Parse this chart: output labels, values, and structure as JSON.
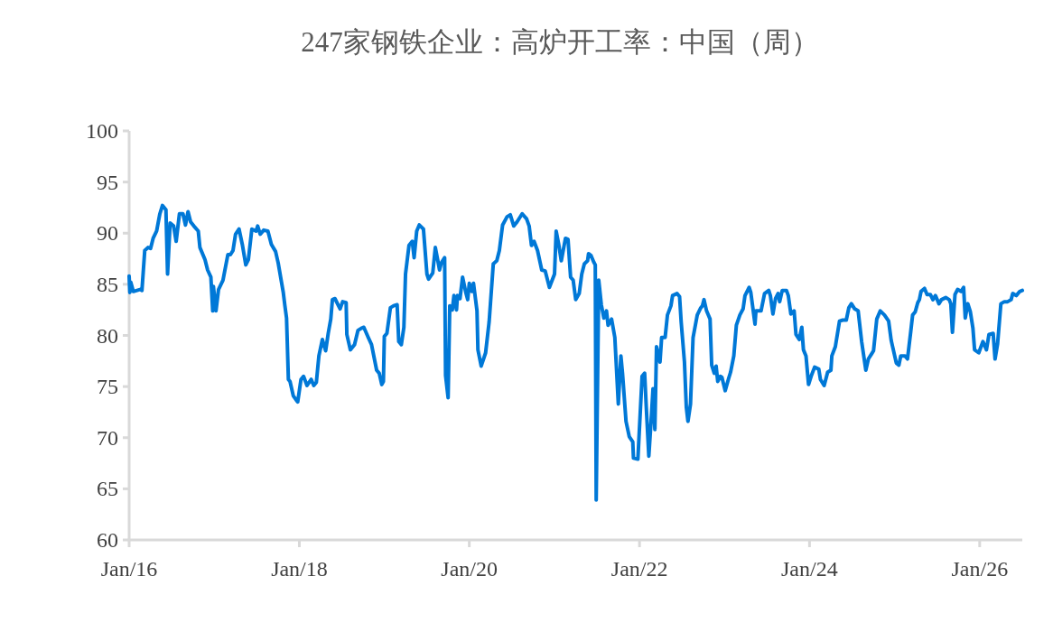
{
  "chart_data": {
    "type": "line",
    "title": "247家钢铁企业：高炉开工率：中国（周）",
    "x": [
      "2016-01-01",
      "2016-01-04",
      "2016-01-08",
      "2016-01-19",
      "2016-02-17",
      "2016-02-25",
      "2016-03-08",
      "2016-03-22",
      "2016-04-02",
      "2016-04-13",
      "2016-04-28",
      "2016-05-12",
      "2016-05-23",
      "2016-06-07",
      "2016-06-14",
      "2016-06-25",
      "2016-07-10",
      "2016-07-21",
      "2016-08-04",
      "2016-08-19",
      "2016-08-30",
      "2016-09-10",
      "2016-09-21",
      "2016-10-05",
      "2016-10-24",
      "2016-10-31",
      "2016-11-22",
      "2016-12-03",
      "2016-12-17",
      "2016-12-25",
      "2016-12-28",
      "2017-01-08",
      "2017-01-19",
      "2017-02-07",
      "2017-02-17",
      "2017-02-28",
      "2017-03-11",
      "2017-03-22",
      "2017-04-02",
      "2017-04-17",
      "2017-05-01",
      "2017-05-16",
      "2017-05-27",
      "2017-06-11",
      "2017-06-29",
      "2017-07-06",
      "2017-07-17",
      "2017-08-01",
      "2017-08-19",
      "2017-09-03",
      "2017-09-21",
      "2017-10-02",
      "2017-10-24",
      "2017-10-31",
      "2017-11-07",
      "2017-11-15",
      "2017-11-22",
      "2017-12-06",
      "2017-12-21",
      "2017-12-25",
      "2018-01-08",
      "2018-01-19",
      "2018-02-03",
      "2018-02-21",
      "2018-03-04",
      "2018-03-15",
      "2018-03-26",
      "2018-04-10",
      "2018-04-24",
      "2018-05-05",
      "2018-05-16",
      "2018-05-23",
      "2018-06-03",
      "2018-06-25",
      "2018-07-06",
      "2018-07-21",
      "2018-07-24",
      "2018-08-08",
      "2018-08-26",
      "2018-09-10",
      "2018-09-24",
      "2018-10-05",
      "2018-10-24",
      "2018-11-07",
      "2018-11-29",
      "2018-12-10",
      "2018-12-21",
      "2018-12-28",
      "2019-01-01",
      "2019-01-12",
      "2019-01-27",
      "2019-02-10",
      "2019-02-25",
      "2019-03-04",
      "2019-03-15",
      "2019-03-26",
      "2019-04-02",
      "2019-04-17",
      "2019-05-01",
      "2019-05-09",
      "2019-05-20",
      "2019-05-31",
      "2019-06-18",
      "2019-07-03",
      "2019-07-10",
      "2019-07-28",
      "2019-08-08",
      "2019-08-19",
      "2019-08-26",
      "2019-09-03",
      "2019-09-17",
      "2019-09-21",
      "2019-10-02",
      "2019-10-09",
      "2019-10-20",
      "2019-10-27",
      "2019-11-07",
      "2019-11-11",
      "2019-11-22",
      "2019-12-03",
      "2019-12-17",
      "2019-12-25",
      "2020-01-01",
      "2020-01-12",
      "2020-01-19",
      "2020-02-03",
      "2020-02-07",
      "2020-02-21",
      "2020-03-11",
      "2020-03-26",
      "2020-04-13",
      "2020-04-28",
      "2020-05-09",
      "2020-05-23",
      "2020-06-11",
      "2020-06-25",
      "2020-07-10",
      "2020-07-24",
      "2020-08-15",
      "2020-09-03",
      "2020-09-14",
      "2020-09-24",
      "2020-10-05",
      "2020-10-20",
      "2020-11-07",
      "2020-11-22",
      "2020-12-10",
      "2021-01-01",
      "2021-01-08",
      "2021-01-19",
      "2021-01-30",
      "2021-02-17",
      "2021-02-28",
      "2021-03-11",
      "2021-03-22",
      "2021-04-02",
      "2021-04-17",
      "2021-04-28",
      "2021-05-09",
      "2021-05-23",
      "2021-05-27",
      "2021-06-07",
      "2021-06-18",
      "2021-06-25",
      "2021-06-29",
      "2021-07-10",
      "2021-07-21",
      "2021-08-01",
      "2021-08-12",
      "2021-08-19",
      "2021-09-03",
      "2021-09-17",
      "2021-10-02",
      "2021-10-13",
      "2021-10-20",
      "2021-11-04",
      "2021-11-18",
      "2021-12-03",
      "2021-12-06",
      "2021-12-25",
      "2022-01-12",
      "2022-01-23",
      "2022-01-30",
      "2022-02-10",
      "2022-02-21",
      "2022-02-28",
      "2022-03-08",
      "2022-03-15",
      "2022-03-30",
      "2022-04-06",
      "2022-04-21",
      "2022-05-01",
      "2022-05-16",
      "2022-05-23",
      "2022-06-11",
      "2022-06-22",
      "2022-06-29",
      "2022-07-13",
      "2022-07-21",
      "2022-07-28",
      "2022-08-08",
      "2022-08-19",
      "2022-09-06",
      "2022-09-21",
      "2022-09-28",
      "2022-10-05",
      "2022-10-16",
      "2022-10-31",
      "2022-11-07",
      "2022-11-18",
      "2022-11-26",
      "2022-12-03",
      "2022-12-14",
      "2022-12-21",
      "2023-01-04",
      "2023-01-19",
      "2023-01-27",
      "2023-02-10",
      "2023-02-21",
      "2023-03-08",
      "2023-03-22",
      "2023-03-30",
      "2023-04-17",
      "2023-04-24",
      "2023-05-12",
      "2023-05-16",
      "2023-06-07",
      "2023-06-22",
      "2023-07-10",
      "2023-07-17",
      "2023-07-28",
      "2023-08-08",
      "2023-08-19",
      "2023-08-26",
      "2023-09-06",
      "2023-09-24",
      "2023-10-02",
      "2023-10-13",
      "2023-10-27",
      "2023-11-04",
      "2023-11-18",
      "2023-11-29",
      "2023-12-06",
      "2023-12-17",
      "2023-12-28",
      "2024-01-08",
      "2024-01-23",
      "2024-02-10",
      "2024-02-17",
      "2024-03-04",
      "2024-03-19",
      "2024-04-02",
      "2024-04-06",
      "2024-04-21",
      "2024-05-09",
      "2024-05-23",
      "2024-06-07",
      "2024-06-18",
      "2024-06-29",
      "2024-07-13",
      "2024-07-28",
      "2024-08-12",
      "2024-08-30",
      "2024-09-10",
      "2024-09-24",
      "2024-10-02",
      "2024-10-16",
      "2024-10-31",
      "2024-11-18",
      "2024-12-06",
      "2024-12-17",
      "2025-01-08",
      "2025-01-19",
      "2025-01-27",
      "2025-02-14",
      "2025-02-25",
      "2025-03-11",
      "2025-03-19",
      "2025-03-30",
      "2025-04-10",
      "2025-04-17",
      "2025-04-24",
      "2025-05-09",
      "2025-05-20",
      "2025-06-03",
      "2025-06-14",
      "2025-06-25",
      "2025-07-10",
      "2025-07-21",
      "2025-08-08",
      "2025-08-23",
      "2025-08-30",
      "2025-09-06",
      "2025-09-17",
      "2025-09-28",
      "2025-10-13",
      "2025-10-24",
      "2025-10-31",
      "2025-11-11",
      "2025-11-22",
      "2025-12-03",
      "2025-12-10",
      "2025-12-28",
      "2026-01-15",
      "2026-01-30",
      "2026-02-10",
      "2026-02-28",
      "2026-03-08",
      "2026-03-19",
      "2026-04-02",
      "2026-04-17",
      "2026-05-01",
      "2026-05-16",
      "2026-05-23",
      "2026-06-07",
      "2026-06-22",
      "2026-07-03"
    ],
    "series": [
      {
        "color": "#0078d7",
        "values": [
          85.8,
          84.2,
          85.2,
          84.3,
          84.5,
          84.4,
          88.3,
          88.6,
          88.5,
          89.5,
          90.2,
          91.9,
          92.7,
          92.3,
          86.0,
          91.0,
          90.7,
          89.2,
          91.9,
          91.9,
          90.8,
          92.1,
          91.1,
          90.7,
          90.2,
          88.6,
          87.4,
          86.4,
          85.7,
          82.4,
          84.8,
          82.4,
          84.5,
          85.4,
          86.6,
          87.9,
          87.9,
          88.3,
          89.9,
          90.4,
          88.9,
          86.9,
          87.4,
          90.4,
          90.2,
          90.7,
          89.9,
          90.3,
          90.2,
          88.9,
          88.2,
          87.1,
          84.2,
          82.9,
          81.7,
          75.7,
          75.5,
          74.1,
          73.6,
          73.5,
          75.7,
          76.0,
          75.1,
          75.7,
          75.1,
          75.4,
          78.0,
          79.6,
          78.5,
          80.2,
          81.6,
          83.5,
          83.6,
          82.6,
          83.3,
          83.2,
          80.1,
          78.6,
          79.1,
          80.5,
          80.7,
          80.8,
          79.8,
          79.1,
          76.6,
          76.3,
          75.2,
          75.5,
          79.9,
          80.2,
          82.7,
          82.9,
          83.0,
          79.4,
          79.1,
          80.8,
          86.0,
          88.8,
          89.2,
          87.6,
          90.2,
          90.8,
          90.4,
          86.0,
          85.5,
          86.1,
          88.6,
          87.3,
          86.4,
          87.1,
          87.6,
          76.1,
          73.9,
          82.9,
          82.5,
          83.9,
          82.5,
          83.9,
          83.6,
          85.7,
          84.2,
          83.5,
          85.1,
          84.3,
          85.1,
          82.4,
          78.6,
          77.0,
          78.3,
          81.3,
          87.0,
          87.3,
          88.3,
          90.8,
          91.6,
          91.8,
          90.7,
          91.1,
          91.9,
          91.4,
          90.7,
          88.8,
          89.2,
          88.3,
          86.4,
          86.3,
          84.7,
          86.0,
          90.2,
          88.9,
          87.3,
          89.5,
          89.4,
          85.7,
          85.4,
          83.5,
          84.1,
          86.0,
          87.0,
          87.3,
          88.0,
          87.8,
          87.2,
          86.9,
          63.9,
          85.4,
          83.0,
          81.7,
          82.4,
          81.0,
          81.6,
          79.8,
          73.3,
          78.0,
          76.3,
          71.6,
          70.1,
          69.6,
          68.0,
          67.9,
          76.0,
          76.3,
          73.0,
          68.2,
          72.1,
          74.8,
          70.8,
          78.9,
          77.4,
          79.8,
          79.8,
          82.0,
          82.9,
          83.9,
          84.1,
          83.8,
          81.3,
          77.4,
          73.0,
          71.6,
          73.3,
          79.8,
          82.0,
          82.7,
          82.9,
          83.5,
          82.4,
          81.6,
          77.1,
          76.3,
          77.0,
          75.5,
          76.0,
          75.9,
          74.6,
          75.8,
          76.4,
          78.0,
          81.0,
          82.0,
          82.6,
          83.9,
          84.7,
          84.2,
          81.1,
          82.4,
          82.4,
          84.1,
          84.4,
          83.9,
          82.1,
          83.6,
          84.1,
          83.3,
          84.4,
          84.4,
          83.9,
          82.1,
          82.4,
          80.1,
          79.6,
          80.8,
          78.6,
          78.0,
          75.2,
          76.0,
          76.9,
          76.7,
          75.7,
          75.1,
          76.4,
          76.6,
          78.0,
          78.9,
          81.4,
          81.5,
          81.5,
          82.7,
          83.1,
          82.6,
          82.4,
          79.4,
          76.6,
          77.7,
          78.2,
          78.5,
          81.6,
          82.4,
          82.0,
          81.4,
          79.5,
          77.3,
          77.1,
          78.0,
          78.0,
          77.7,
          80.4,
          82.0,
          82.3,
          83.2,
          83.5,
          84.3,
          84.6,
          84.0,
          84.0,
          83.5,
          83.9,
          83.1,
          83.5,
          83.7,
          83.5,
          83.1,
          80.3,
          84.0,
          84.5,
          84.3,
          84.7,
          81.7,
          83.1,
          82.3,
          80.7,
          78.6,
          78.3,
          79.4,
          78.6,
          80.1,
          80.2,
          77.7,
          79.2,
          83.1,
          83.3,
          83.3,
          83.5,
          84.1,
          83.9,
          84.3,
          84.4
        ]
      }
    ],
    "xlim": [
      "2016-01-01",
      "2026-07-03"
    ],
    "xticks": [
      {
        "value": "2016-01-01",
        "label": "Jan/16"
      },
      {
        "value": "2018-01-01",
        "label": "Jan/18"
      },
      {
        "value": "2020-01-01",
        "label": "Jan/20"
      },
      {
        "value": "2022-01-01",
        "label": "Jan/22"
      },
      {
        "value": "2024-01-01",
        "label": "Jan/24"
      },
      {
        "value": "2026-01-01",
        "label": "Jan/26"
      }
    ],
    "ylim": [
      60,
      100
    ],
    "yticks": [
      60,
      65,
      70,
      75,
      80,
      85,
      90,
      95,
      100
    ],
    "line_style": "solid"
  }
}
